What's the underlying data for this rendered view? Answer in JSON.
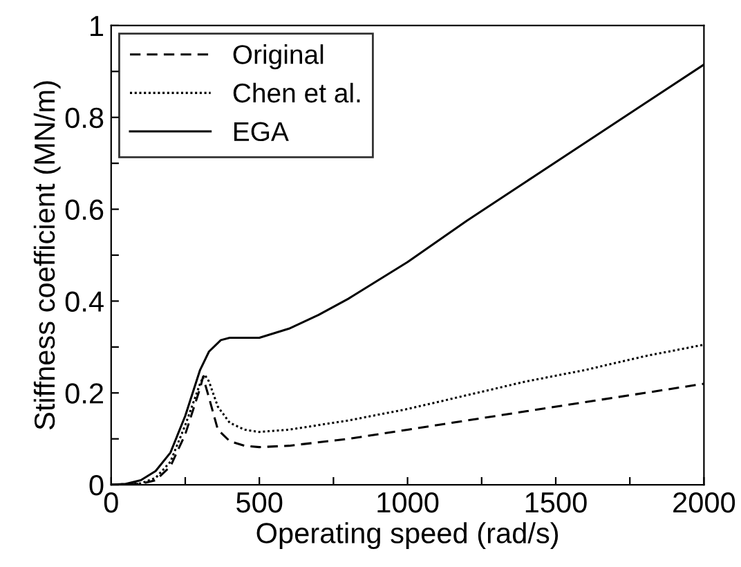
{
  "chart_data": {
    "type": "line",
    "xlabel": "Operating speed (rad/s)",
    "ylabel": "Stiffness coefficient (MN/m)",
    "xlim": [
      0,
      2000
    ],
    "ylim": [
      0,
      1
    ],
    "xticks": [
      0,
      {
        "value": 250,
        "label": null
      },
      500,
      {
        "value": 750,
        "label": null
      },
      1000,
      {
        "value": 1250,
        "label": null
      },
      1500,
      {
        "value": 1750,
        "label": null
      },
      2000
    ],
    "yticks": [
      0,
      {
        "value": 0.1,
        "label": null
      },
      0.2,
      {
        "value": 0.3,
        "label": null
      },
      0.4,
      {
        "value": 0.5,
        "label": null
      },
      0.6,
      {
        "value": 0.7,
        "label": null
      },
      0.8,
      {
        "value": 0.9,
        "label": null
      },
      1
    ],
    "grid": false,
    "legend": "top left",
    "marker": "none",
    "series": [
      {
        "name": "Original",
        "color": "#000000",
        "line_style": "dashed",
        "x": [
          0,
          100,
          150,
          200,
          250,
          300,
          310,
          330,
          360,
          400,
          450,
          500,
          600,
          800,
          1000,
          1200,
          1400,
          1600,
          1800,
          2000
        ],
        "values": [
          0,
          0.002,
          0.01,
          0.04,
          0.11,
          0.21,
          0.235,
          0.19,
          0.12,
          0.095,
          0.085,
          0.082,
          0.085,
          0.1,
          0.12,
          0.14,
          0.16,
          0.18,
          0.2,
          0.22
        ]
      },
      {
        "name": "Chen et al.",
        "color": "#000000",
        "line_style": "dotted",
        "x": [
          0,
          100,
          150,
          200,
          250,
          300,
          315,
          330,
          360,
          400,
          450,
          500,
          600,
          800,
          1000,
          1200,
          1400,
          1600,
          1800,
          2000
        ],
        "values": [
          0,
          0.003,
          0.015,
          0.05,
          0.13,
          0.22,
          0.24,
          0.225,
          0.17,
          0.135,
          0.12,
          0.115,
          0.12,
          0.14,
          0.165,
          0.195,
          0.225,
          0.25,
          0.28,
          0.305
        ]
      },
      {
        "name": "EGA",
        "color": "#000000",
        "line_style": "solid",
        "x": [
          0,
          50,
          100,
          150,
          200,
          250,
          300,
          330,
          370,
          400,
          500,
          600,
          700,
          800,
          1000,
          1200,
          1400,
          1600,
          1800,
          2000
        ],
        "values": [
          0,
          0.002,
          0.01,
          0.03,
          0.07,
          0.15,
          0.25,
          0.29,
          0.315,
          0.32,
          0.32,
          0.34,
          0.37,
          0.405,
          0.485,
          0.575,
          0.66,
          0.745,
          0.83,
          0.915
        ]
      }
    ]
  }
}
